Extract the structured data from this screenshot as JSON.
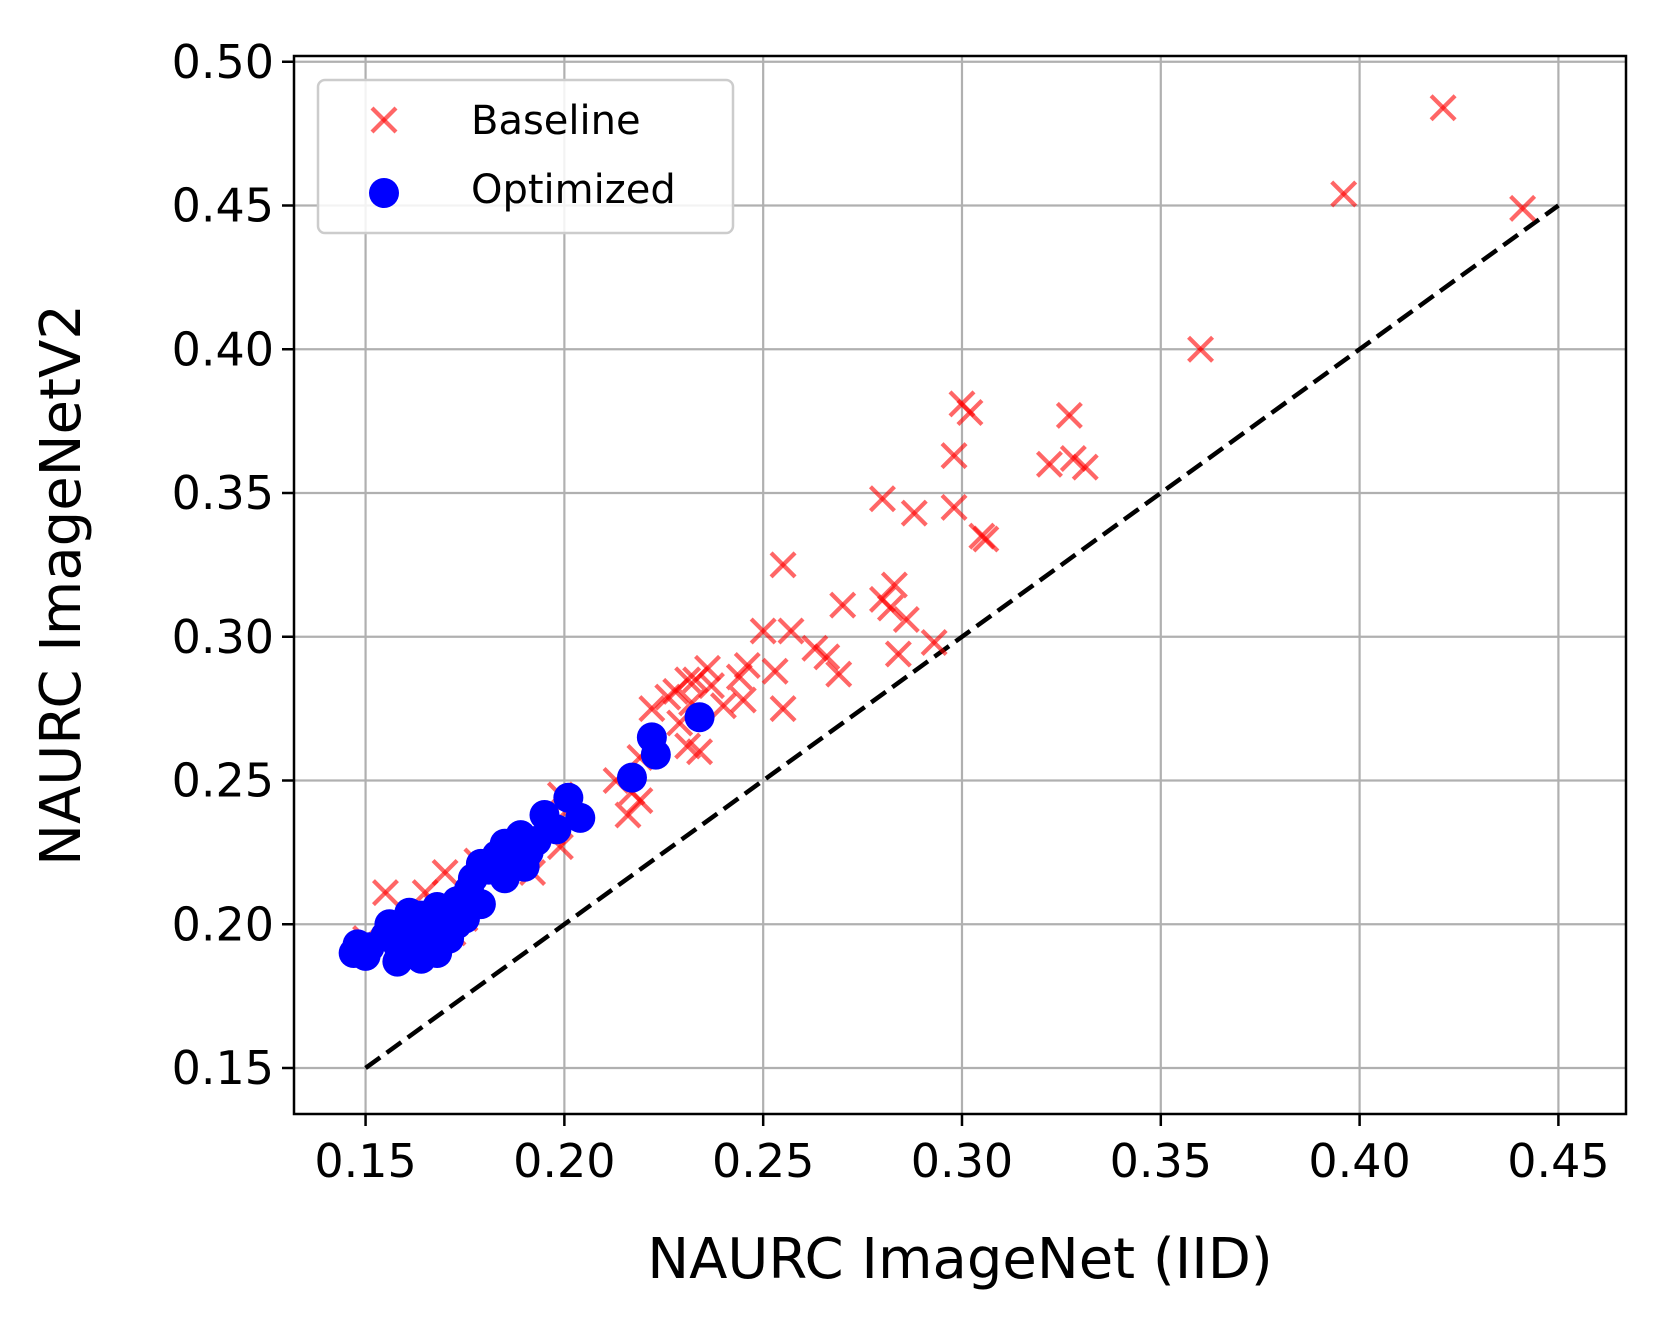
{
  "chart_data": {
    "type": "scatter",
    "xlabel": "NAURC ImageNet (IID)",
    "ylabel": "NAURC ImageNetV2",
    "xlim": [
      0.132,
      0.467
    ],
    "ylim": [
      0.134,
      0.502
    ],
    "xticks": [
      0.15,
      0.2,
      0.25,
      0.3,
      0.35,
      0.4,
      0.45
    ],
    "yticks": [
      0.15,
      0.2,
      0.25,
      0.3,
      0.35,
      0.4,
      0.45,
      0.5
    ],
    "xtick_labels": [
      "0.15",
      "0.20",
      "0.25",
      "0.30",
      "0.35",
      "0.40",
      "0.45"
    ],
    "ytick_labels": [
      "0.15",
      "0.20",
      "0.25",
      "0.30",
      "0.35",
      "0.40",
      "0.45",
      "0.50"
    ],
    "grid": true,
    "legend_position": "top-left",
    "reference_line": {
      "style": "dashed",
      "color": "#000000",
      "from": [
        0.15,
        0.15
      ],
      "to": [
        0.45,
        0.45
      ]
    },
    "series": [
      {
        "name": "Baseline",
        "marker": "x",
        "color": "#ff0000",
        "opacity": 0.6,
        "points": [
          [
            0.421,
            0.484
          ],
          [
            0.396,
            0.454
          ],
          [
            0.441,
            0.449
          ],
          [
            0.36,
            0.4
          ],
          [
            0.3,
            0.381
          ],
          [
            0.302,
            0.378
          ],
          [
            0.327,
            0.377
          ],
          [
            0.298,
            0.363
          ],
          [
            0.322,
            0.36
          ],
          [
            0.328,
            0.362
          ],
          [
            0.331,
            0.359
          ],
          [
            0.28,
            0.348
          ],
          [
            0.298,
            0.345
          ],
          [
            0.288,
            0.343
          ],
          [
            0.305,
            0.335
          ],
          [
            0.306,
            0.334
          ],
          [
            0.255,
            0.325
          ],
          [
            0.283,
            0.318
          ],
          [
            0.28,
            0.313
          ],
          [
            0.27,
            0.311
          ],
          [
            0.282,
            0.31
          ],
          [
            0.286,
            0.306
          ],
          [
            0.25,
            0.302
          ],
          [
            0.257,
            0.302
          ],
          [
            0.293,
            0.298
          ],
          [
            0.263,
            0.296
          ],
          [
            0.266,
            0.293
          ],
          [
            0.284,
            0.294
          ],
          [
            0.246,
            0.29
          ],
          [
            0.236,
            0.289
          ],
          [
            0.253,
            0.288
          ],
          [
            0.269,
            0.287
          ],
          [
            0.244,
            0.286
          ],
          [
            0.231,
            0.285
          ],
          [
            0.233,
            0.285
          ],
          [
            0.237,
            0.283
          ],
          [
            0.228,
            0.281
          ],
          [
            0.226,
            0.279
          ],
          [
            0.245,
            0.278
          ],
          [
            0.232,
            0.277
          ],
          [
            0.24,
            0.276
          ],
          [
            0.222,
            0.275
          ],
          [
            0.255,
            0.275
          ],
          [
            0.229,
            0.27
          ],
          [
            0.231,
            0.262
          ],
          [
            0.234,
            0.26
          ],
          [
            0.219,
            0.258
          ],
          [
            0.213,
            0.25
          ],
          [
            0.217,
            0.246
          ],
          [
            0.219,
            0.243
          ],
          [
            0.216,
            0.238
          ],
          [
            0.199,
            0.245
          ],
          [
            0.201,
            0.24
          ],
          [
            0.196,
            0.237
          ],
          [
            0.197,
            0.232
          ],
          [
            0.199,
            0.227
          ],
          [
            0.188,
            0.225
          ],
          [
            0.178,
            0.222
          ],
          [
            0.184,
            0.22
          ],
          [
            0.192,
            0.218
          ],
          [
            0.17,
            0.218
          ],
          [
            0.165,
            0.211
          ],
          [
            0.155,
            0.211
          ],
          [
            0.168,
            0.206
          ],
          [
            0.175,
            0.202
          ],
          [
            0.157,
            0.199
          ],
          [
            0.15,
            0.195
          ],
          [
            0.16,
            0.192
          ],
          [
            0.166,
            0.19
          ],
          [
            0.172,
            0.197
          ],
          [
            0.162,
            0.188
          ]
        ]
      },
      {
        "name": "Optimized",
        "marker": "o",
        "color": "#0000ff",
        "opacity": 1,
        "points": [
          [
            0.234,
            0.272
          ],
          [
            0.222,
            0.265
          ],
          [
            0.223,
            0.259
          ],
          [
            0.217,
            0.251
          ],
          [
            0.201,
            0.244
          ],
          [
            0.204,
            0.237
          ],
          [
            0.195,
            0.238
          ],
          [
            0.198,
            0.233
          ],
          [
            0.193,
            0.229
          ],
          [
            0.189,
            0.231
          ],
          [
            0.191,
            0.225
          ],
          [
            0.185,
            0.228
          ],
          [
            0.187,
            0.222
          ],
          [
            0.183,
            0.224
          ],
          [
            0.181,
            0.219
          ],
          [
            0.185,
            0.216
          ],
          [
            0.19,
            0.22
          ],
          [
            0.179,
            0.221
          ],
          [
            0.177,
            0.216
          ],
          [
            0.176,
            0.212
          ],
          [
            0.179,
            0.207
          ],
          [
            0.173,
            0.208
          ],
          [
            0.171,
            0.205
          ],
          [
            0.175,
            0.202
          ],
          [
            0.168,
            0.206
          ],
          [
            0.167,
            0.201
          ],
          [
            0.17,
            0.199
          ],
          [
            0.164,
            0.203
          ],
          [
            0.161,
            0.204
          ],
          [
            0.16,
            0.199
          ],
          [
            0.163,
            0.198
          ],
          [
            0.156,
            0.2
          ],
          [
            0.155,
            0.196
          ],
          [
            0.158,
            0.193
          ],
          [
            0.161,
            0.192
          ],
          [
            0.165,
            0.195
          ],
          [
            0.171,
            0.195
          ],
          [
            0.168,
            0.19
          ],
          [
            0.164,
            0.188
          ],
          [
            0.158,
            0.187
          ],
          [
            0.151,
            0.192
          ],
          [
            0.148,
            0.193
          ],
          [
            0.147,
            0.19
          ],
          [
            0.15,
            0.189
          ],
          [
            0.166,
            0.192
          ],
          [
            0.173,
            0.2
          ]
        ]
      }
    ]
  }
}
